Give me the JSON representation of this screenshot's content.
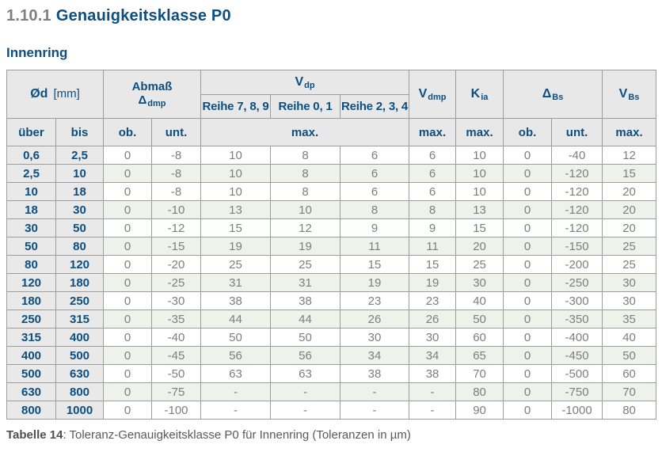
{
  "page": {
    "section_number": "1.10.1",
    "section_title": "Genauigkeitsklasse P0",
    "subtitle": "Innenring",
    "caption_label": "Tabelle 14",
    "caption_text": ": Toleranz-Genauigkeitsklasse P0 für Innenring (Toleranzen in µm)"
  },
  "colors": {
    "heading_blue": "#0d4e80",
    "heading_gray": "#7f7f7f",
    "header_bg": "#e8e8e8",
    "row_alt_green": "#edf3ea",
    "data_text_gray": "#7e7e7e",
    "border_gray": "#9d9d9d"
  },
  "table": {
    "header": {
      "d": {
        "sym": "Ød",
        "unit": "[mm]"
      },
      "abmass": {
        "line1": "Abmaß",
        "sym": "Δ",
        "sub": "dmp"
      },
      "vdp": {
        "sym": "V",
        "sub": "dp"
      },
      "reihe_789": "Reihe 7, 8, 9",
      "reihe_01": "Reihe 0, 1",
      "reihe_234": "Reihe 2, 3, 4",
      "vdmp": {
        "sym": "V",
        "sub": "dmp"
      },
      "kia": {
        "sym": "K",
        "sub": "ia"
      },
      "dbs": {
        "sym": "Δ",
        "sub": "Bs"
      },
      "vbs": {
        "sym": "V",
        "sub": "Bs"
      },
      "sub": {
        "ueber": "über",
        "bis": "bis",
        "ob1": "ob.",
        "unt1": "unt.",
        "max_vdp": "max.",
        "max_vdmp": "max.",
        "max_kia": "max.",
        "ob2": "ob.",
        "unt2": "unt.",
        "max_vbs": "max."
      }
    },
    "rows": [
      [
        "0,6",
        "2,5",
        "0",
        "-8",
        "10",
        "8",
        "6",
        "6",
        "10",
        "0",
        "-40",
        "12"
      ],
      [
        "2,5",
        "10",
        "0",
        "-8",
        "10",
        "8",
        "6",
        "6",
        "10",
        "0",
        "-120",
        "15"
      ],
      [
        "10",
        "18",
        "0",
        "-8",
        "10",
        "8",
        "6",
        "6",
        "10",
        "0",
        "-120",
        "20"
      ],
      [
        "18",
        "30",
        "0",
        "-10",
        "13",
        "10",
        "8",
        "8",
        "13",
        "0",
        "-120",
        "20"
      ],
      [
        "30",
        "50",
        "0",
        "-12",
        "15",
        "12",
        "9",
        "9",
        "15",
        "0",
        "-120",
        "20"
      ],
      [
        "50",
        "80",
        "0",
        "-15",
        "19",
        "19",
        "11",
        "11",
        "20",
        "0",
        "-150",
        "25"
      ],
      [
        "80",
        "120",
        "0",
        "-20",
        "25",
        "25",
        "15",
        "15",
        "25",
        "0",
        "-200",
        "25"
      ],
      [
        "120",
        "180",
        "0",
        "-25",
        "31",
        "31",
        "19",
        "19",
        "30",
        "0",
        "-250",
        "30"
      ],
      [
        "180",
        "250",
        "0",
        "-30",
        "38",
        "38",
        "23",
        "23",
        "40",
        "0",
        "-300",
        "30"
      ],
      [
        "250",
        "315",
        "0",
        "-35",
        "44",
        "44",
        "26",
        "26",
        "50",
        "0",
        "-350",
        "35"
      ],
      [
        "315",
        "400",
        "0",
        "-40",
        "50",
        "50",
        "30",
        "30",
        "60",
        "0",
        "-400",
        "40"
      ],
      [
        "400",
        "500",
        "0",
        "-45",
        "56",
        "56",
        "34",
        "34",
        "65",
        "0",
        "-450",
        "50"
      ],
      [
        "500",
        "630",
        "0",
        "-50",
        "63",
        "63",
        "38",
        "38",
        "70",
        "0",
        "-500",
        "60"
      ],
      [
        "630",
        "800",
        "0",
        "-75",
        "-",
        "-",
        "-",
        "-",
        "80",
        "0",
        "-750",
        "70"
      ],
      [
        "800",
        "1000",
        "0",
        "-100",
        "-",
        "-",
        "-",
        "-",
        "90",
        "0",
        "-1000",
        "80"
      ]
    ]
  }
}
